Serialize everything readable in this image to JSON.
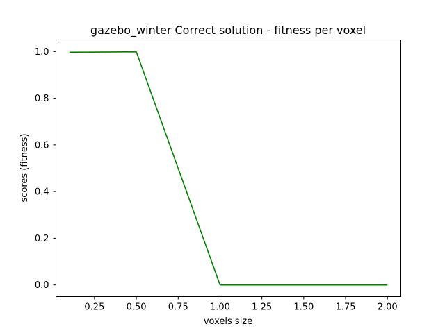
{
  "chart_data": {
    "type": "line",
    "title": "gazebo_winter Correct solution - fitness per voxel",
    "xlabel": "voxels size",
    "ylabel": "scores (fitness)",
    "xlim": [
      0.02,
      2.08
    ],
    "ylim": [
      -0.05,
      1.05
    ],
    "x_ticks": [
      0.25,
      0.5,
      0.75,
      1.0,
      1.25,
      1.5,
      1.75,
      2.0
    ],
    "x_tick_labels": [
      "0.25",
      "0.50",
      "0.75",
      "1.00",
      "1.25",
      "1.50",
      "1.75",
      "2.00"
    ],
    "y_ticks": [
      0.0,
      0.2,
      0.4,
      0.6,
      0.8,
      1.0
    ],
    "y_tick_labels": [
      "0.0",
      "0.2",
      "0.4",
      "0.6",
      "0.8",
      "1.0"
    ],
    "grid": false,
    "series": [
      {
        "color": "#008000",
        "x": [
          0.1,
          0.5,
          1.0,
          1.5,
          2.0
        ],
        "y": [
          0.997,
          0.999,
          0.0,
          0.0,
          0.0
        ]
      }
    ]
  }
}
